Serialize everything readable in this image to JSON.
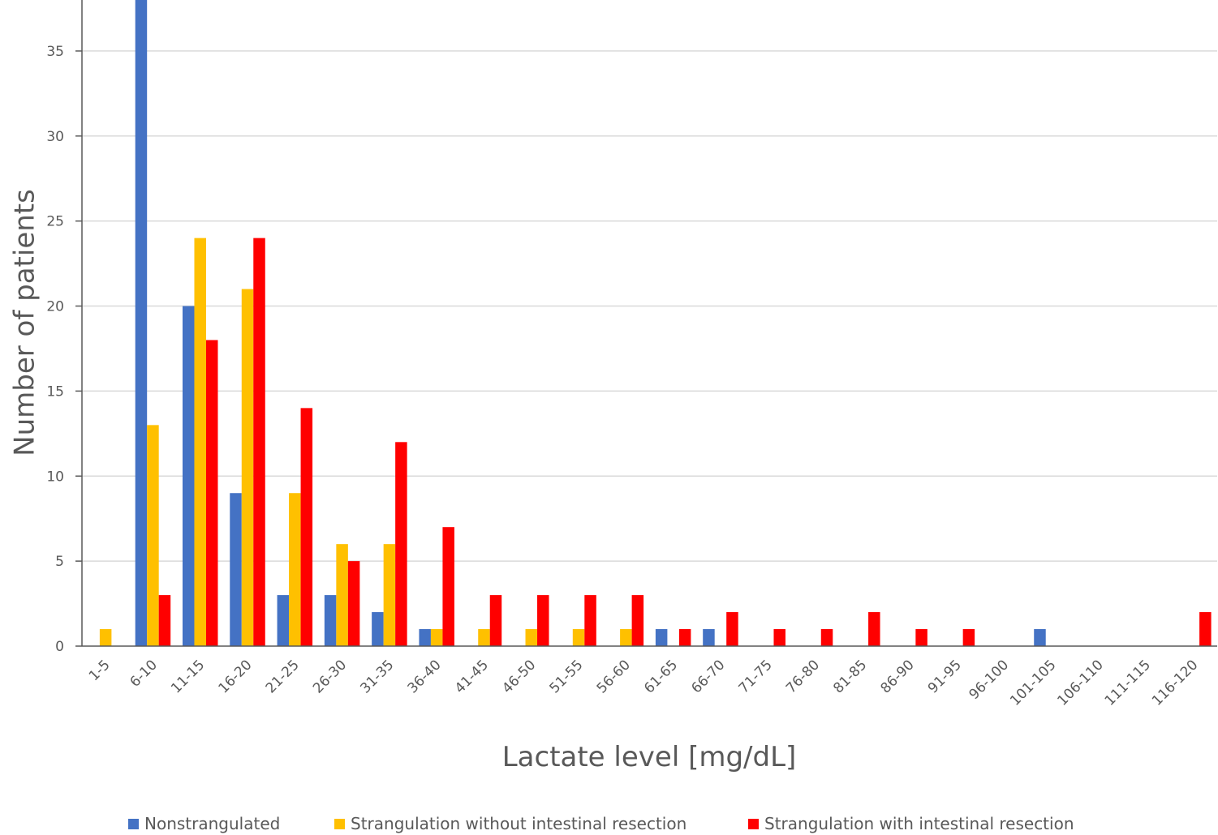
{
  "chart_data": {
    "type": "bar",
    "title": "",
    "xlabel": "Lactate level [mg/dL]",
    "ylabel": "Number of patients",
    "ylim": [
      0,
      38
    ],
    "yticks": [
      0,
      5,
      10,
      15,
      20,
      25,
      30,
      35
    ],
    "grid": "horizontal",
    "legend_position": "bottom",
    "categories": [
      "1-5",
      "6-10",
      "11-15",
      "16-20",
      "21-25",
      "26-30",
      "31-35",
      "36-40",
      "41-45",
      "46-50",
      "51-55",
      "56-60",
      "61-65",
      "66-70",
      "71-75",
      "76-80",
      "81-85",
      "86-90",
      "91-95",
      "96-100",
      "101-105",
      "106-110",
      "111-115",
      "116-120"
    ],
    "series": [
      {
        "name": "Nonstrangulated",
        "color": "#4472C4",
        "values": [
          0,
          38,
          20,
          9,
          3,
          3,
          2,
          1,
          0,
          0,
          0,
          0,
          1,
          1,
          0,
          0,
          0,
          0,
          0,
          0,
          1,
          0,
          0,
          0
        ]
      },
      {
        "name": "Strangulation without intestinal resection",
        "color": "#FFC000",
        "values": [
          1,
          13,
          24,
          21,
          9,
          6,
          6,
          1,
          1,
          1,
          1,
          1,
          0,
          0,
          0,
          0,
          0,
          0,
          0,
          0,
          0,
          0,
          0,
          0
        ]
      },
      {
        "name": "Strangulation with intestinal resection",
        "color": "#FF0000",
        "values": [
          0,
          3,
          18,
          24,
          14,
          5,
          12,
          7,
          3,
          3,
          3,
          3,
          1,
          2,
          1,
          1,
          2,
          1,
          1,
          0,
          0,
          0,
          0,
          2
        ]
      }
    ]
  }
}
